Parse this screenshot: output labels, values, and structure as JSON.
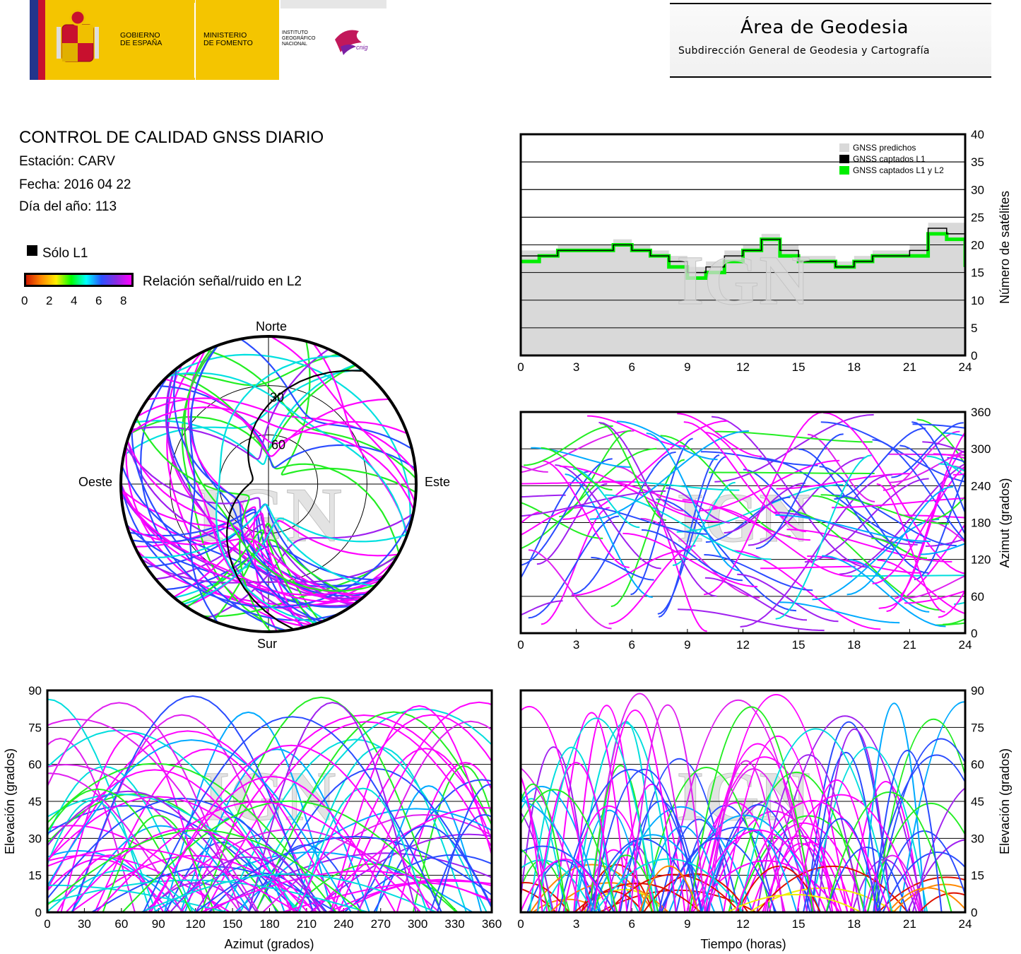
{
  "header": {
    "gov_label_1": "GOBIERNO",
    "gov_label_2": "DE ESPAÑA",
    "ministry_label_1": "MINISTERIO",
    "ministry_label_2": "DE FOMENTO",
    "institute_label_1": "INSTITUTO",
    "institute_label_2": "GEOGRÁFICO",
    "institute_label_3": "NACIONAL",
    "cnig_label": "cnig",
    "area_title": "Área de Geodesia",
    "area_subtitle": "Subdirección General de Geodesia y Cartografía"
  },
  "report": {
    "title": "CONTROL DE CALIDAD GNSS DIARIO",
    "station": "Estación: CARV",
    "date": "Fecha: 2016 04 22",
    "doy": "Día del año: 113"
  },
  "legend": {
    "solo_l1": "Sólo L1",
    "snr_label": "Relación señal/ruido en L2",
    "snr_ticks": [
      "0",
      "2",
      "4",
      "6",
      "8"
    ],
    "colors": {
      "solo_l1": "#000000",
      "ramp": [
        "#d11a00",
        "#ff8800",
        "#ffee00",
        "#00ff00",
        "#00ffff",
        "#2a52ff",
        "#ff00ff"
      ]
    }
  },
  "watermark": "IGN",
  "chart_data": [
    {
      "type": "polar",
      "name": "skyplot",
      "cardinal": {
        "north": "Norte",
        "south": "Sur",
        "east": "Este",
        "west": "Oeste"
      },
      "ring_labels": [
        "30",
        "60"
      ],
      "elevation_rings_deg": [
        30,
        60
      ],
      "mask_elevation_deg": 0,
      "tracks": [
        {
          "snr_color": "magenta",
          "az_start": 305,
          "az_end": 70,
          "max_el": 65
        },
        {
          "snr_color": "magenta",
          "az_start": 290,
          "az_end": 100,
          "max_el": 55
        },
        {
          "snr_color": "blue",
          "az_start": 200,
          "az_end": 340,
          "max_el": 45
        },
        {
          "snr_color": "cyan",
          "az_start": 160,
          "az_end": 30,
          "max_el": 60
        },
        {
          "snr_color": "black",
          "az_start": 170,
          "az_end": 40,
          "max_el": 80
        }
      ]
    },
    {
      "type": "area",
      "name": "satellites-vs-time",
      "ylabel": "Número de satélites",
      "xlim": [
        0,
        24
      ],
      "ylim": [
        0,
        40
      ],
      "x_ticks": [
        0,
        3,
        6,
        9,
        12,
        15,
        18,
        21,
        24
      ],
      "y_ticks": [
        0,
        5,
        10,
        15,
        20,
        25,
        30,
        35,
        40
      ],
      "legend_position": "top-right",
      "series": [
        {
          "name": "GNSS predichos",
          "color": "#d9d9d9",
          "x": [
            0,
            1,
            2,
            3,
            4,
            5,
            6,
            7,
            8,
            9,
            10,
            11,
            12,
            13,
            14,
            15,
            16,
            17,
            18,
            19,
            20,
            21,
            22,
            23,
            24
          ],
          "values": [
            19,
            19,
            20,
            20,
            20,
            21,
            20,
            19,
            18,
            16,
            17,
            19,
            20,
            22,
            20,
            18,
            18,
            17,
            18,
            19,
            19,
            20,
            24,
            24,
            17
          ]
        },
        {
          "name": "GNSS captados L1",
          "color": "#000000",
          "x": [
            0,
            1,
            2,
            3,
            4,
            5,
            6,
            7,
            8,
            9,
            10,
            11,
            12,
            13,
            14,
            15,
            16,
            17,
            18,
            19,
            20,
            21,
            22,
            23,
            24
          ],
          "values": [
            18,
            18,
            19,
            19,
            19,
            20,
            19,
            18,
            17,
            15,
            16,
            18,
            19,
            21,
            19,
            17,
            17,
            16,
            17,
            18,
            18,
            19,
            23,
            22,
            16
          ]
        },
        {
          "name": "GNSS captados L1 y L2",
          "color": "#00ee00",
          "x": [
            0,
            1,
            2,
            3,
            4,
            5,
            6,
            7,
            8,
            9,
            10,
            11,
            12,
            13,
            14,
            15,
            16,
            17,
            18,
            19,
            20,
            21,
            22,
            23,
            24
          ],
          "values": [
            17,
            18,
            19,
            19,
            19,
            20,
            19,
            18,
            16,
            14,
            15,
            17,
            19,
            21,
            18,
            17,
            17,
            16,
            17,
            18,
            18,
            18,
            22,
            21,
            16
          ]
        }
      ]
    },
    {
      "type": "scatter",
      "name": "azimuth-vs-time",
      "ylabel": "Azimut (grados)",
      "xlim": [
        0,
        24
      ],
      "ylim": [
        0,
        360
      ],
      "x_ticks": [
        0,
        3,
        6,
        9,
        12,
        15,
        18,
        21,
        24
      ],
      "y_ticks": [
        0,
        60,
        120,
        180,
        240,
        300,
        360
      ]
    },
    {
      "type": "scatter",
      "name": "elevation-vs-azimuth",
      "xlabel": "Azimut (grados)",
      "ylabel": "Elevación (grados)",
      "xlim": [
        0,
        360
      ],
      "ylim": [
        0,
        90
      ],
      "x_ticks": [
        0,
        30,
        60,
        90,
        120,
        150,
        180,
        210,
        240,
        270,
        300,
        330,
        360
      ],
      "y_ticks": [
        0,
        15,
        30,
        45,
        60,
        75,
        90
      ]
    },
    {
      "type": "scatter",
      "name": "elevation-vs-time",
      "xlabel": "Tiempo (horas)",
      "ylabel": "Elevación (grados)",
      "xlim": [
        0,
        24
      ],
      "ylim": [
        0,
        90
      ],
      "x_ticks": [
        0,
        3,
        6,
        9,
        12,
        15,
        18,
        21,
        24
      ],
      "y_ticks": [
        0,
        15,
        30,
        45,
        60,
        75,
        90
      ]
    }
  ]
}
